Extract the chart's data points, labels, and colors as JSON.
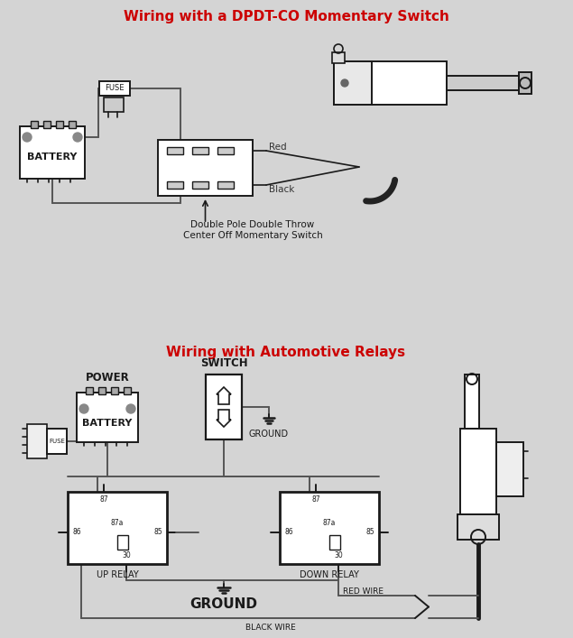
{
  "title1": "Wiring with a DPDT-CO Momentary Switch",
  "title2": "Wiring with Automotive Relays",
  "title_color": "#cc0000",
  "bg_color": "#d4d4d4",
  "line_color": "#1a1a1a",
  "label_red": "Red",
  "label_black": "Black",
  "label_dpdt": "Double Pole Double Throw\nCenter Off Momentary Switch",
  "label_battery": "BATTERY",
  "label_fuse": "FUSE",
  "label_power": "POWER",
  "label_switch": "SWITCH",
  "label_ground1": "GROUND",
  "label_ground2": "GROUND",
  "label_up_relay": "UP RELAY",
  "label_down_relay": "DOWN RELAY",
  "label_red_wire": "RED WIRE",
  "label_black_wire": "BLACK WIRE",
  "wire_color": "#555555"
}
